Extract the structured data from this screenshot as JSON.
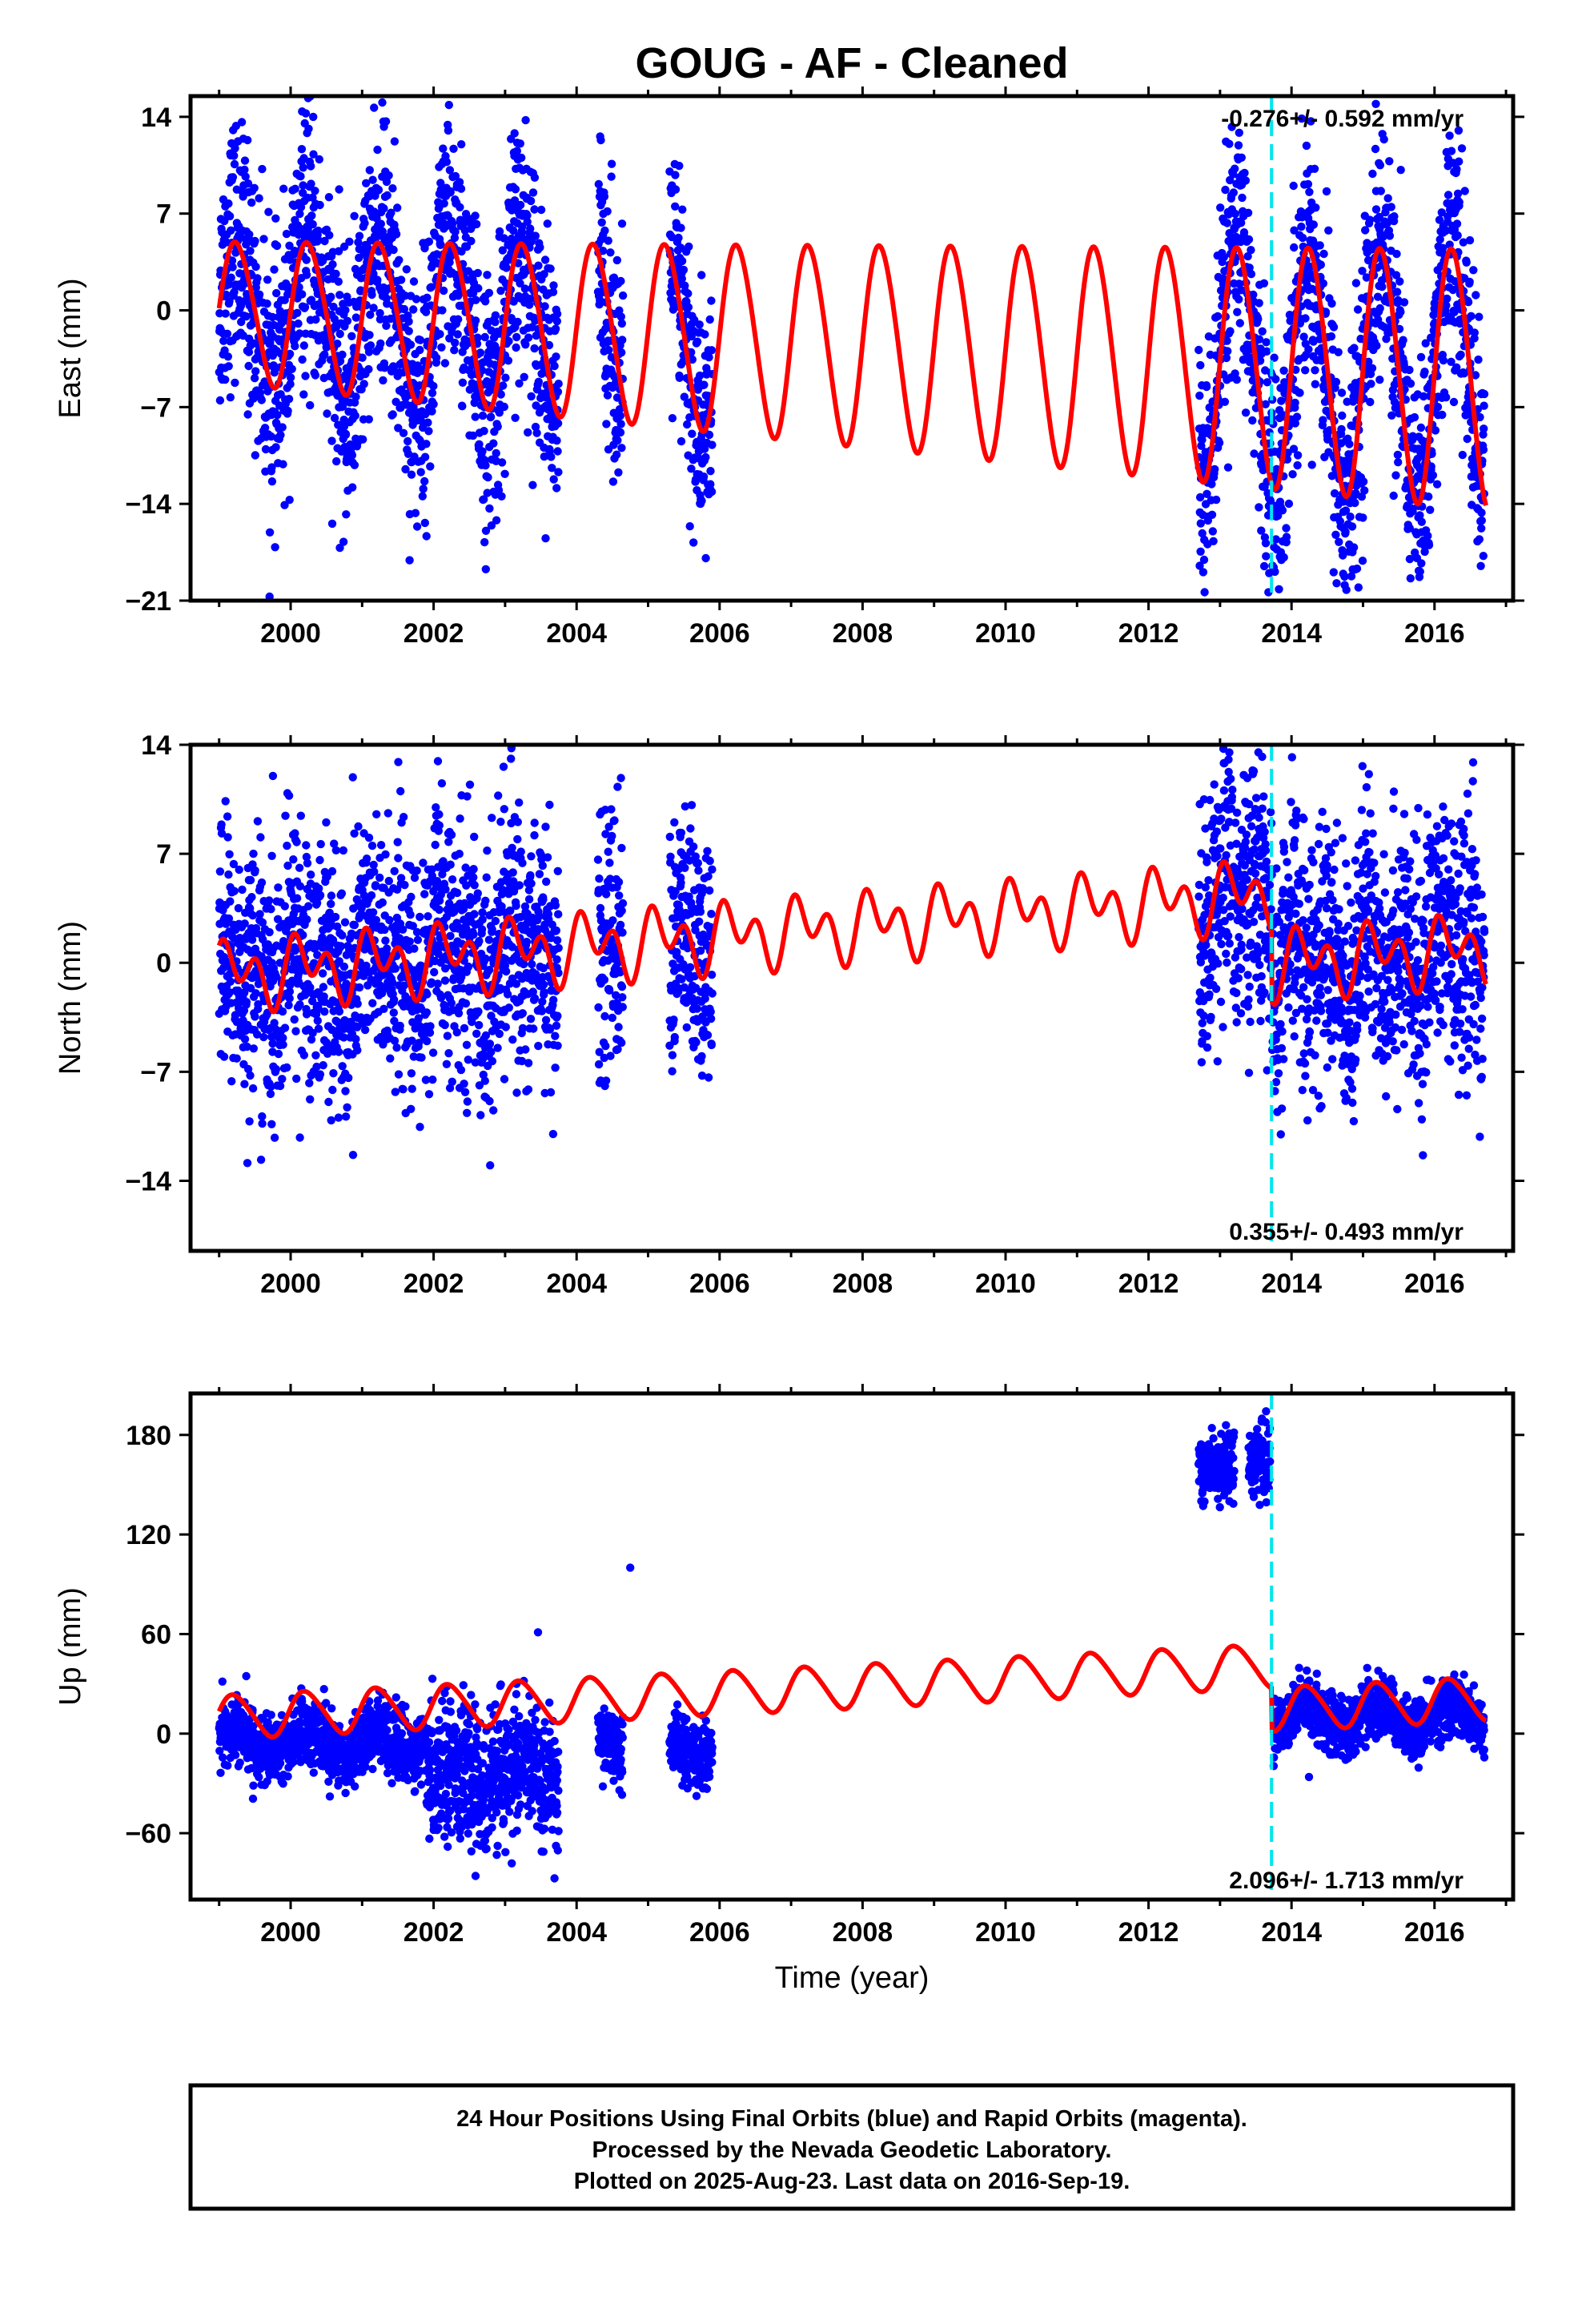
{
  "title": "GOUG  - AF - Cleaned",
  "colors": {
    "final_orbits": "#0000ff",
    "model_fit": "#ff0000",
    "offset_line": "#00e5ee",
    "axis": "#000000"
  },
  "footer": {
    "line1": "24 Hour Positions Using Final Orbits (blue) and Rapid Orbits (magenta).",
    "line2": "Processed by the Nevada Geodetic Laboratory.",
    "line3": "Plotted on 2025-Aug-23. Last data on 2016-Sep-19."
  },
  "chart_data": [
    {
      "type": "scatter",
      "ylabel": "East (mm)",
      "xlim": [
        1998.6,
        2017.1
      ],
      "ylim": [
        -21,
        15.5
      ],
      "xticks": [
        2000,
        2002,
        2004,
        2006,
        2008,
        2010,
        2012,
        2014,
        2016
      ],
      "yticks": [
        -21,
        -14,
        -7,
        0,
        7,
        14
      ],
      "rate_text": "-0.276+/- 0.592 mm/yr",
      "rate_position": "top-right",
      "offset_epoch": 2013.72,
      "data_spans": [
        [
          1999.0,
          2003.75
        ],
        [
          2004.3,
          2004.65
        ],
        [
          2005.3,
          2005.9
        ],
        [
          2012.7,
          2016.7
        ]
      ],
      "point_density_per_year": 330,
      "noise_sd": 4.5,
      "model": {
        "start": 1999.0,
        "end": 2016.72,
        "offset": 0.0,
        "slope": -0.276,
        "annual_amp": 5.0,
        "annual_phase": 0.0,
        "semiannual_amp": 0.5,
        "semiannual_phase": 0.3,
        "amp_growth": 0.05,
        "step_at": 2013.72,
        "step": 0.0
      }
    },
    {
      "type": "scatter",
      "ylabel": "North (mm)",
      "xlim": [
        1998.6,
        2017.1
      ],
      "ylim": [
        -18.5,
        14
      ],
      "xticks": [
        2000,
        2002,
        2004,
        2006,
        2008,
        2010,
        2012,
        2014,
        2016
      ],
      "yticks": [
        -14,
        -7,
        0,
        7,
        14
      ],
      "rate_text": "0.355+/- 0.493 mm/yr",
      "rate_position": "bottom-right",
      "offset_epoch": 2013.72,
      "data_spans": [
        [
          1999.0,
          2003.75
        ],
        [
          2004.3,
          2004.65
        ],
        [
          2005.3,
          2005.9
        ],
        [
          2012.7,
          2016.7
        ]
      ],
      "point_density_per_year": 330,
      "noise_sd": 4.0,
      "model": {
        "start": 1999.0,
        "end": 2016.72,
        "offset": -0.8,
        "slope": 0.355,
        "annual_amp": 1.3,
        "annual_phase": 0.4,
        "semiannual_amp": 1.5,
        "semiannual_phase": 1.2,
        "amp_growth": 0.0,
        "step_at": 2013.72,
        "step": -4.5
      }
    },
    {
      "type": "scatter",
      "ylabel": "Up (mm)",
      "xlabel": "Time (year)",
      "xlim": [
        1998.6,
        2017.1
      ],
      "ylim": [
        -100,
        205
      ],
      "xticks": [
        2000,
        2002,
        2004,
        2006,
        2008,
        2010,
        2012,
        2014,
        2016
      ],
      "yticks": [
        -60,
        0,
        60,
        120,
        180
      ],
      "rate_text": "2.096+/- 1.713 mm/yr",
      "rate_position": "bottom-right",
      "offset_epoch": 2013.72,
      "data_spans": [
        [
          1999.0,
          2001.9
        ],
        [
          2001.9,
          2003.75
        ],
        [
          2004.3,
          2004.65
        ],
        [
          2005.3,
          2005.9
        ],
        [
          2012.7,
          2013.2
        ],
        [
          2013.4,
          2013.7
        ],
        [
          2013.75,
          2016.7
        ]
      ],
      "span_levels": [
        -5,
        -25,
        -8,
        -8,
        162,
        165,
        10
      ],
      "span_noise_sd": [
        10,
        20,
        10,
        10,
        10,
        10,
        9
      ],
      "point_density_per_year": 330,
      "model": {
        "start": 1999.0,
        "end": 2016.72,
        "offset": 10.0,
        "slope": 2.096,
        "annual_amp": 13.0,
        "annual_phase": 0.2,
        "semiannual_amp": 1.5,
        "semiannual_phase": 0.6,
        "amp_growth": 0.0,
        "step_at": 2013.72,
        "step": -26.0
      },
      "outliers": [
        [
          2004.75,
          100
        ]
      ]
    }
  ]
}
